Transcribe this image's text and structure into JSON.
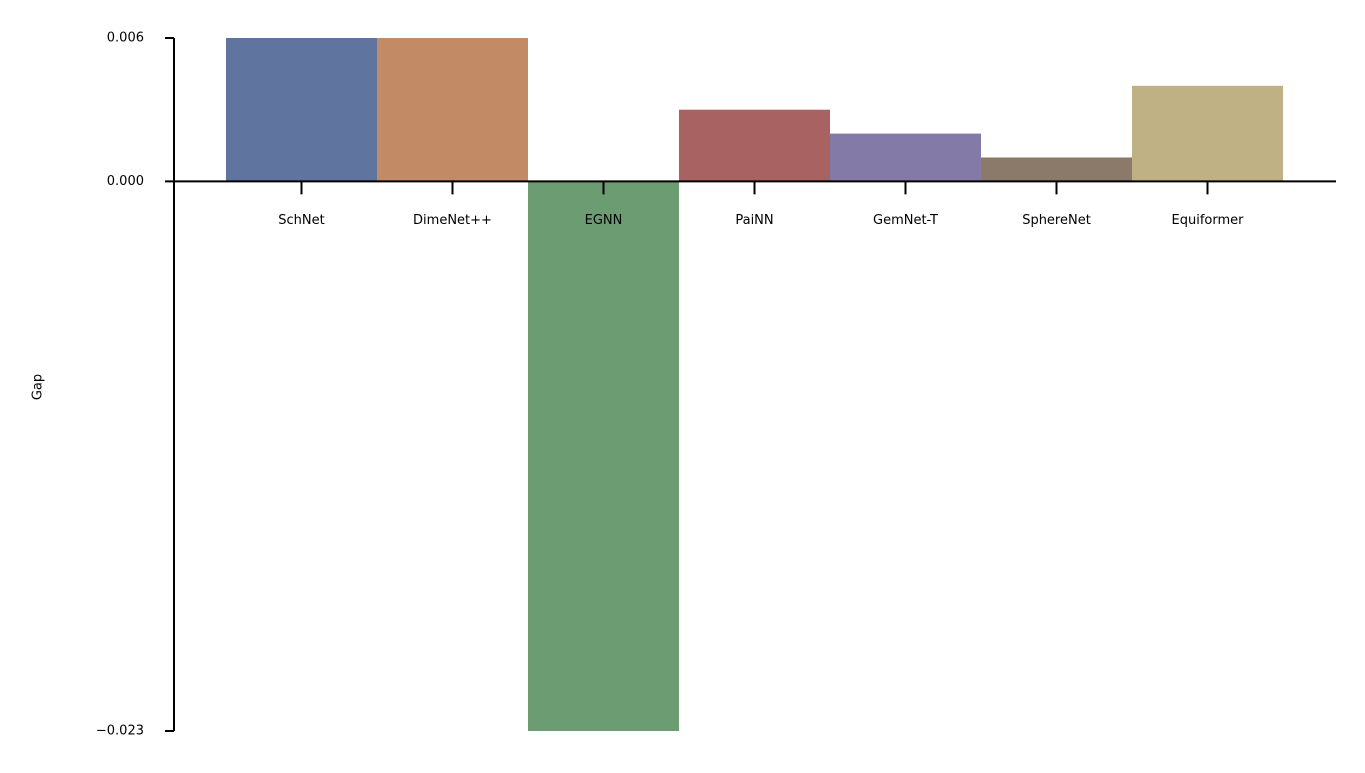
{
  "chart_data": {
    "type": "bar",
    "y_label": "Gap",
    "categories": [
      "SchNet",
      "DimeNet++",
      "EGNN",
      "PaiNN",
      "GemNet-T",
      "SphereNet",
      "Equiformer"
    ],
    "values": [
      0.006,
      0.006,
      -0.023,
      0.003,
      0.002,
      0.001,
      0.004
    ],
    "colors": [
      "#6074a0",
      "#c28b66",
      "#6b9c72",
      "#a86262",
      "#837aa8",
      "#8b7a69",
      "#bfb183"
    ],
    "ylim": [
      -0.023,
      0.006
    ],
    "yticks": [
      {
        "value": -0.023,
        "label": "−0.023"
      },
      {
        "value": 0,
        "label": "0.000"
      },
      0.006
    ],
    "grid": false
  }
}
